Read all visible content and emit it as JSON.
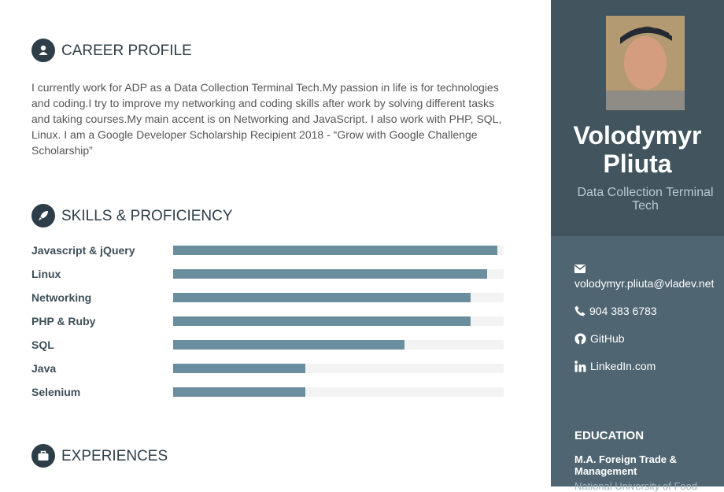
{
  "career_profile": {
    "title": "CAREER PROFILE",
    "text": "I currently work for ADP as a Data Collection Terminal Tech.My passion in life is for technologies and coding.I try to improve my networking and coding skills after work by solving different tasks and taking courses.My main accent is on Networking and JavaScript. I also work with PHP, SQL, Linux. I am a Google Developer Scholarship Recipient 2018 - “Grow with Google Challenge Scholarship”"
  },
  "skills": {
    "title": "SKILLS & PROFICIENCY",
    "items": [
      {
        "name": "Javascript & jQuery",
        "level": 98
      },
      {
        "name": "Linux",
        "level": 95
      },
      {
        "name": "Networking",
        "level": 90
      },
      {
        "name": "PHP & Ruby",
        "level": 90
      },
      {
        "name": "SQL",
        "level": 70
      },
      {
        "name": "Java",
        "level": 40
      },
      {
        "name": "Selenium",
        "level": 40
      }
    ]
  },
  "experiences": {
    "title": "EXPERIENCES"
  },
  "sidebar": {
    "name": "Volodymyr Pliuta",
    "tagline": "Data Collection Terminal Tech",
    "contact": {
      "email": "volodymyr.pliuta@vladev.net",
      "phone": "904 383 6783",
      "github": "GitHub",
      "linkedin": "LinkedIn.com"
    },
    "education": {
      "title": "EDUCATION",
      "degree": "M.A. Foreign Trade & Management",
      "school": "National University of Food"
    }
  }
}
